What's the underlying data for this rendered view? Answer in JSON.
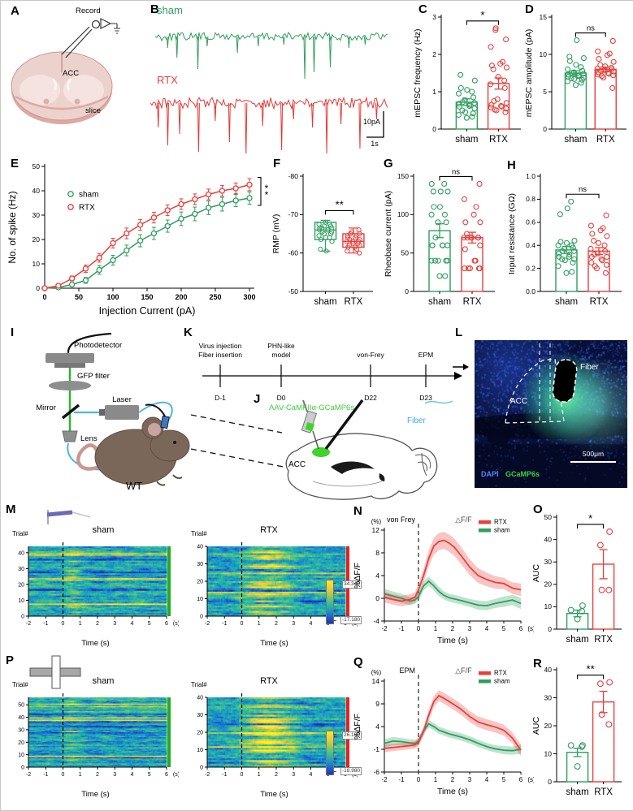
{
  "letters": {
    "A": "A",
    "B": "B",
    "C": "C",
    "D": "D",
    "E": "E",
    "F": "F",
    "G": "G",
    "H": "H",
    "I": "I",
    "J": "J",
    "K": "K",
    "L": "L",
    "M": "M",
    "N": "N",
    "O": "O",
    "P": "P",
    "Q": "Q",
    "R": "R"
  },
  "colors": {
    "sham": "#2f9e5f",
    "rtx": "#e8403c",
    "trace_green": "#31a05c",
    "trace_red": "#e53935",
    "heat_edge_green": "#1fae1f",
    "heat_edge_red": "#e42320",
    "fiber_blue": "#45aee8",
    "gcamp_green": "#3bd43b",
    "dapi_blue": "#4a8cff",
    "virus_green": "#3ecf3e"
  },
  "panels": {
    "A": {
      "record": "Record",
      "acc": "ACC",
      "slice": "slice"
    },
    "B": {
      "sham": "sham",
      "rtx": "RTX",
      "scale_v": "10pA",
      "scale_h": "1s"
    },
    "I": {
      "photodetector": "Photodetector",
      "gfp_filter": "GFP filter",
      "mirror": "Mirror",
      "laser": "Laser",
      "lens": "Lens",
      "wt": "WT"
    },
    "K": {
      "events": [
        {
          "line1": "Virus injection",
          "line2": "Fiber insertion",
          "day": "D-1"
        },
        {
          "line1": "PHN-like",
          "line2": "model",
          "day": "D0"
        },
        {
          "line1": "von-Frey",
          "line2": "",
          "day": "D22"
        },
        {
          "line1": "EPM",
          "line2": "",
          "day": "D23"
        }
      ]
    },
    "J": {
      "virus": "AAV-CaMKIIα-GCaMP6s",
      "fiber": "Fiber",
      "acc": "ACC"
    },
    "L": {
      "fiber": "Fiber",
      "acc": "ACC",
      "dapi": "DAPI",
      "gcamp": "GCaMP6s",
      "scale": "500μm"
    }
  },
  "chart_data": [
    {
      "panel": "C",
      "type": "bar-scatter",
      "ylabel": "mEPSC frequency (Hz)",
      "categories": [
        "sham",
        "RTX"
      ],
      "values": [
        0.72,
        1.22
      ],
      "errors": [
        0.09,
        0.15
      ],
      "ylim": [
        0,
        3
      ],
      "yticks": [
        0,
        1,
        2,
        3
      ],
      "sig": "*",
      "points": [
        [
          0.3,
          0.33,
          0.38,
          0.42,
          0.45,
          0.5,
          0.55,
          0.6,
          0.62,
          0.65,
          0.68,
          0.7,
          0.72,
          0.78,
          0.85,
          0.95,
          1.0,
          1.05,
          1.1,
          1.3,
          1.45
        ],
        [
          0.45,
          0.5,
          0.52,
          0.55,
          0.58,
          0.6,
          0.62,
          0.65,
          0.7,
          0.75,
          0.8,
          1.1,
          1.2,
          1.3,
          1.4,
          1.6,
          1.65,
          1.7,
          1.75,
          1.8,
          2.2,
          2.4,
          2.65,
          2.7
        ]
      ]
    },
    {
      "panel": "D",
      "type": "bar-scatter",
      "ylabel": "mEPSC amplitude (pA)",
      "categories": [
        "sham",
        "RTX"
      ],
      "values": [
        7.5,
        8.0
      ],
      "errors": [
        0.3,
        0.3
      ],
      "ylim": [
        0,
        15
      ],
      "yticks": [
        0,
        5,
        10,
        15
      ],
      "sig": "ns",
      "points": [
        [
          5.9,
          6.2,
          6.4,
          6.6,
          6.7,
          6.8,
          6.9,
          7.0,
          7.1,
          7.2,
          7.3,
          7.4,
          7.5,
          7.6,
          7.8,
          8.0,
          8.3,
          8.6,
          9.1,
          9.5,
          9.7,
          11.9
        ],
        [
          5.5,
          6.9,
          7.1,
          7.2,
          7.3,
          7.4,
          7.5,
          7.6,
          7.7,
          7.8,
          7.9,
          8.0,
          8.1,
          8.2,
          8.4,
          8.6,
          9.0,
          9.4,
          9.9,
          10.1,
          10.4,
          11.8
        ]
      ]
    },
    {
      "panel": "E",
      "type": "line",
      "xlabel": "Injection Current (pA)",
      "ylabel": "No. of spike (Hz)",
      "x": [
        0,
        20,
        40,
        60,
        80,
        100,
        120,
        140,
        160,
        180,
        200,
        220,
        240,
        260,
        280,
        300
      ],
      "xticks": [
        0,
        50,
        100,
        150,
        200,
        250,
        300
      ],
      "ylim": [
        0,
        50
      ],
      "yticks": [
        0,
        10,
        20,
        30,
        40,
        50
      ],
      "sig": "**",
      "series": [
        {
          "name": "sham",
          "values": [
            0,
            0.3,
            1.5,
            3.2,
            7.5,
            11.5,
            15.5,
            19.5,
            22.5,
            25.5,
            28.5,
            30.5,
            33,
            34.5,
            36,
            37
          ],
          "errors": [
            0.2,
            0.4,
            0.8,
            1.2,
            1.8,
            2.0,
            2.2,
            2.5,
            2.5,
            2.5,
            2.8,
            2.8,
            2.8,
            2.8,
            2.5,
            2.5
          ]
        },
        {
          "name": "RTX",
          "values": [
            0,
            1,
            4,
            8,
            12.5,
            18.5,
            22.5,
            26,
            29,
            32,
            34.5,
            36.5,
            38.5,
            40,
            41,
            42.5
          ],
          "errors": [
            0.3,
            0.6,
            1.0,
            1.5,
            1.8,
            2.0,
            2.2,
            2.2,
            2.2,
            2.2,
            2.2,
            2.2,
            2.2,
            2.2,
            2.2,
            2.5
          ]
        }
      ]
    },
    {
      "panel": "F",
      "type": "box",
      "ylabel": "RMP (mV)",
      "categories": [
        "sham",
        "RTX"
      ],
      "ylim": [
        -80,
        -50
      ],
      "yticks": [
        -80,
        -70,
        -60,
        -50
      ],
      "inverted": true,
      "sig": "**",
      "boxes": [
        {
          "whisker_low": -68.5,
          "q1": -68,
          "median": -66,
          "q3": -63.5,
          "whisker_high": -60.5
        },
        {
          "whisker_low": -66.5,
          "q1": -65,
          "median": -63,
          "q3": -61.5,
          "whisker_high": -60
        }
      ],
      "points": [
        [
          -68,
          -67.5,
          -67.5,
          -67,
          -67,
          -66.5,
          -66.5,
          -66.5,
          -66,
          -66,
          -66,
          -65.5,
          -65.5,
          -65,
          -65,
          -64.5,
          -64,
          -64,
          -63.5,
          -63,
          -61,
          -60.5
        ],
        [
          -66,
          -65.5,
          -65,
          -65,
          -64.5,
          -64.5,
          -64,
          -64,
          -63.5,
          -63.5,
          -63,
          -63,
          -63,
          -62.5,
          -62.5,
          -62,
          -62,
          -61.5,
          -61.5,
          -61,
          -60.5,
          -60
        ]
      ]
    },
    {
      "panel": "G",
      "type": "bar-scatter",
      "ylabel": "Rheobase current (pA)",
      "categories": [
        "sham",
        "RTX"
      ],
      "values": [
        79,
        70
      ],
      "errors": [
        9,
        7
      ],
      "ylim": [
        0,
        150
      ],
      "yticks": [
        0,
        50,
        100,
        150
      ],
      "sig": "ns",
      "points": [
        [
          20,
          20,
          40,
          40,
          40,
          40,
          40,
          60,
          60,
          60,
          60,
          60,
          70,
          90,
          90,
          100,
          100,
          110,
          110,
          130,
          130,
          130,
          140,
          140
        ],
        [
          30,
          30,
          30,
          30,
          30,
          40,
          40,
          55,
          60,
          70,
          70,
          70,
          70,
          70,
          70,
          75,
          90,
          90,
          100,
          110,
          120,
          140
        ]
      ]
    },
    {
      "panel": "H",
      "type": "bar-scatter",
      "ylabel": "Input resistance (GΩ)",
      "categories": [
        "sham",
        "RTX"
      ],
      "values": [
        0.36,
        0.35
      ],
      "errors": [
        0.03,
        0.03
      ],
      "ylim": [
        0,
        1
      ],
      "yticks": [
        0,
        0.2,
        0.4,
        0.6,
        0.8,
        1
      ],
      "ytick_labels": [
        "0.0",
        "0.2",
        "0.4",
        "0.6",
        "0.8",
        "1.0"
      ],
      "sig": "ns",
      "points": [
        [
          0.16,
          0.17,
          0.22,
          0.25,
          0.27,
          0.28,
          0.28,
          0.3,
          0.3,
          0.32,
          0.33,
          0.35,
          0.35,
          0.37,
          0.38,
          0.4,
          0.4,
          0.42,
          0.43,
          0.44,
          0.67,
          0.72,
          0.78
        ],
        [
          0.16,
          0.2,
          0.22,
          0.23,
          0.25,
          0.27,
          0.28,
          0.3,
          0.3,
          0.32,
          0.33,
          0.35,
          0.37,
          0.4,
          0.42,
          0.44,
          0.48,
          0.5,
          0.53,
          0.55,
          0.57,
          0.66
        ]
      ]
    },
    {
      "panel": "M",
      "type": "heatmap-pair",
      "trial_label": "Trial#",
      "xlabel": "Time (s)",
      "xunit": "(s)",
      "xticks": [
        -2,
        -1,
        0,
        1,
        2,
        3,
        4,
        5,
        6
      ],
      "icon": "von Frey filament",
      "event_time": 0,
      "groups": [
        {
          "title": "sham",
          "trials": 44,
          "yticks": [
            0,
            10,
            20,
            30,
            40
          ],
          "edge_color": "#1fae1f"
        },
        {
          "title": "RTX",
          "trials": 40,
          "yticks": [
            0,
            10,
            20,
            30,
            40
          ],
          "edge_color": "#e42320"
        }
      ],
      "colorbar": {
        "max": "34.340",
        "min": "-17.180"
      }
    },
    {
      "panel": "N",
      "type": "line-band",
      "ylabel": "%ΔF/F",
      "yunit": "(%)",
      "xlabel": "Time (s)",
      "xunit": "(s)",
      "event_label": "von Frey",
      "title": "△F/F",
      "ylim": [
        -4,
        12
      ],
      "yticks": [
        -4,
        0,
        4,
        8,
        12
      ],
      "xticks": [
        -2,
        -1,
        0,
        1,
        2,
        3,
        4,
        5,
        6
      ],
      "legend": [
        "RTX",
        "sham"
      ],
      "x": [
        -2,
        -1.5,
        -1,
        -0.5,
        -0.2,
        0,
        0.3,
        0.6,
        0.9,
        1.2,
        1.5,
        1.8,
        2.1,
        2.5,
        3,
        3.5,
        4,
        4.5,
        5,
        5.5,
        6
      ],
      "series": [
        {
          "name": "sham",
          "values": [
            0.8,
            0.4,
            0,
            -0.5,
            -0.3,
            0.3,
            2.2,
            3,
            2.2,
            1.2,
            0.5,
            0.1,
            -0.1,
            -0.4,
            -0.8,
            -1.2,
            -1.3,
            -0.9,
            -0.6,
            -0.3,
            -0.9
          ],
          "band": [
            0.9,
            0.8,
            0.8,
            0.7,
            0.7,
            0.7,
            0.8,
            0.8,
            0.8,
            0.8,
            0.7,
            0.7,
            0.7,
            0.7,
            0.7,
            0.8,
            0.8,
            0.8,
            0.9,
            0.9,
            1.0
          ]
        },
        {
          "name": "RTX",
          "values": [
            0.2,
            -0.2,
            -0.5,
            -0.2,
            0.2,
            1.5,
            4,
            7,
            9.2,
            10,
            10.2,
            9.7,
            9,
            7.5,
            5.5,
            4,
            3.3,
            2.8,
            2.6,
            1.8,
            1.5
          ],
          "band": [
            0.9,
            0.9,
            0.9,
            0.9,
            0.9,
            1.0,
            1.2,
            1.4,
            1.5,
            1.5,
            1.5,
            1.5,
            1.5,
            1.5,
            1.4,
            1.3,
            1.2,
            1.1,
            1.0,
            1.0,
            1.1
          ]
        }
      ]
    },
    {
      "panel": "O",
      "type": "bar-scatter",
      "ylabel": "AUC",
      "categories": [
        "sham",
        "RTX"
      ],
      "values": [
        7,
        29
      ],
      "errors": [
        1.5,
        6.5
      ],
      "ylim": [
        0,
        50
      ],
      "yticks": [
        0,
        10,
        20,
        30,
        40,
        50
      ],
      "sig": "*",
      "points": [
        [
          4.5,
          8,
          8.5,
          10.5
        ],
        [
          17.5,
          17.5,
          37.5,
          43.5
        ]
      ]
    },
    {
      "panel": "P",
      "type": "heatmap-pair",
      "trial_label": "Trial#",
      "xlabel": "Time (s)",
      "xunit": "(s)",
      "xticks": [
        -2,
        -1,
        0,
        1,
        2,
        3,
        4,
        5,
        6
      ],
      "icon": "elevated plus maze",
      "event_time": 0,
      "groups": [
        {
          "title": "sham",
          "trials": 56,
          "yticks": [
            0,
            10,
            20,
            30,
            40,
            50
          ],
          "edge_color": "#1fae1f"
        },
        {
          "title": "RTX",
          "trials": 40,
          "yticks": [
            0,
            10,
            20,
            30,
            40
          ],
          "edge_color": "#e42320"
        }
      ],
      "colorbar": {
        "max": "26.160",
        "min": "-18.980"
      }
    },
    {
      "panel": "Q",
      "type": "line-band",
      "ylabel": "%ΔF/F",
      "yunit": "(%)",
      "xlabel": "Time (s)",
      "xunit": "(s)",
      "event_label": "EPM",
      "title": "△F/F",
      "ylim": [
        -6,
        14
      ],
      "yticks": [
        -6,
        -1,
        4,
        9,
        14
      ],
      "xticks": [
        -2,
        -1,
        0,
        1,
        2,
        3,
        4,
        5,
        6
      ],
      "legend": [
        "RTX",
        "sham"
      ],
      "x": [
        -2,
        -1.5,
        -1,
        -0.5,
        -0.2,
        0,
        0.3,
        0.6,
        0.9,
        1.2,
        1.5,
        1.8,
        2.1,
        2.5,
        3,
        3.5,
        4,
        4.5,
        5,
        5.5,
        6
      ],
      "series": [
        {
          "name": "sham",
          "values": [
            0.3,
            0.8,
            0.7,
            0.4,
            0.3,
            0.8,
            3,
            4.6,
            4,
            3.2,
            2.8,
            2.4,
            2.1,
            1.7,
            1.1,
            0.3,
            -0.4,
            -0.9,
            -1.2,
            -1.3,
            -1.0
          ],
          "band": [
            0.9,
            0.9,
            0.8,
            0.8,
            0.8,
            0.8,
            0.8,
            0.8,
            0.8,
            0.8,
            0.8,
            0.8,
            0.8,
            0.8,
            0.8,
            0.8,
            0.8,
            0.8,
            0.9,
            0.9,
            1.0
          ]
        },
        {
          "name": "RTX",
          "values": [
            -0.8,
            -0.6,
            -0.4,
            -0.2,
            0,
            0.5,
            3,
            6.5,
            9.5,
            10.8,
            10.2,
            9.5,
            8.8,
            7.8,
            6.2,
            5,
            4.4,
            3.9,
            3.2,
            1.5,
            -1.2
          ],
          "band": [
            0.8,
            0.8,
            0.8,
            0.8,
            0.8,
            0.9,
            1.0,
            1.2,
            1.2,
            1.2,
            1.2,
            1.2,
            1.2,
            1.2,
            1.2,
            1.2,
            1.2,
            1.2,
            1.2,
            1.2,
            1.3
          ]
        }
      ]
    },
    {
      "panel": "R",
      "type": "bar-scatter",
      "ylabel": "AUC",
      "categories": [
        "sham",
        "RTX"
      ],
      "values": [
        10.5,
        28.5
      ],
      "errors": [
        1.5,
        3.8
      ],
      "ylim": [
        0,
        40
      ],
      "yticks": [
        0,
        10,
        20,
        30,
        40
      ],
      "sig": "**",
      "points": [
        [
          5.5,
          12.5,
          13,
          13
        ],
        [
          20.5,
          24,
          35,
          35.5
        ]
      ]
    }
  ]
}
